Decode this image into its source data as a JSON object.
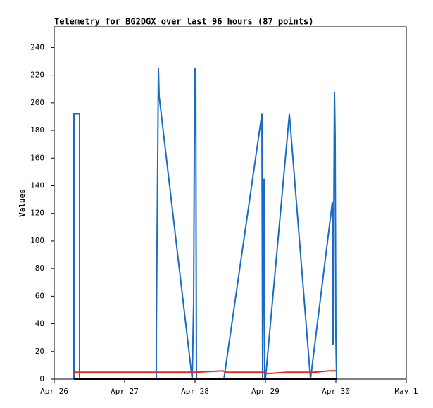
{
  "chart_data": {
    "type": "line",
    "title": "Telemetry for BG2DGX over last 96 hours (87 points)",
    "ylabel": "Values",
    "xlim": [
      0,
      5
    ],
    "xticks": [
      {
        "value": 0,
        "label": "Apr 26"
      },
      {
        "value": 1,
        "label": "Apr 27"
      },
      {
        "value": 2,
        "label": "Apr 28"
      },
      {
        "value": 3,
        "label": "Apr 29"
      },
      {
        "value": 4,
        "label": "Apr 30"
      },
      {
        "value": 5,
        "label": "May 1"
      }
    ],
    "ylim": [
      0,
      255
    ],
    "yticks": [
      0,
      20,
      40,
      60,
      80,
      100,
      120,
      140,
      160,
      180,
      200,
      220,
      240
    ],
    "series": [
      {
        "color": "#1a6bc8",
        "x": [
          0.28,
          0.28,
          0.36,
          0.36,
          1.45,
          1.45,
          1.46,
          1.47,
          1.48,
          1.49,
          1.96,
          1.98,
          1.99,
          2.0,
          2.01,
          2.02,
          2.41,
          2.95,
          2.96,
          2.98,
          2.99,
          3.0,
          3.34,
          3.64,
          3.95,
          3.96,
          3.98,
          3.99,
          4.0,
          4.01
        ],
        "values": [
          0,
          192,
          192,
          0,
          0,
          30,
          97,
          160,
          225,
          205,
          0,
          55,
          168,
          225,
          225,
          0,
          0,
          192,
          0,
          145,
          0,
          0,
          192,
          0,
          128,
          25,
          208,
          175,
          30,
          0
        ]
      },
      {
        "color": "#e8261c",
        "x": [
          0.28,
          2.0,
          2.4,
          2.43,
          3.0,
          3.03,
          3.3,
          3.7,
          3.9,
          4.0
        ],
        "values": [
          5,
          5,
          6,
          5,
          5,
          4,
          5,
          5,
          6,
          6
        ]
      },
      {
        "color": "#000000",
        "x": [
          0.28,
          4.02
        ],
        "values": [
          0,
          0
        ]
      }
    ]
  }
}
